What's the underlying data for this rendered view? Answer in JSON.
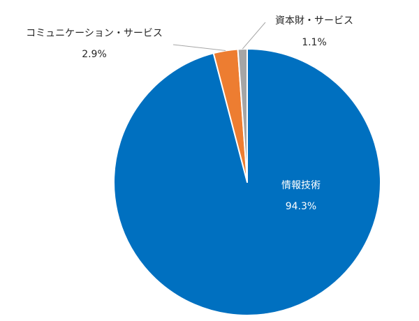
{
  "chart_data": {
    "type": "pie",
    "title": "",
    "legend": "none",
    "colors": [
      "#0070c0",
      "#ed7d31",
      "#a5a5a5"
    ],
    "slices": [
      {
        "name": "情報技術",
        "value": 94.3,
        "value_label": "94.3%"
      },
      {
        "name": "コミュニケーション・サービス",
        "value": 2.9,
        "value_label": "2.9%"
      },
      {
        "name": "資本財・サービス",
        "value": 1.1,
        "value_label": "1.1%"
      }
    ]
  }
}
